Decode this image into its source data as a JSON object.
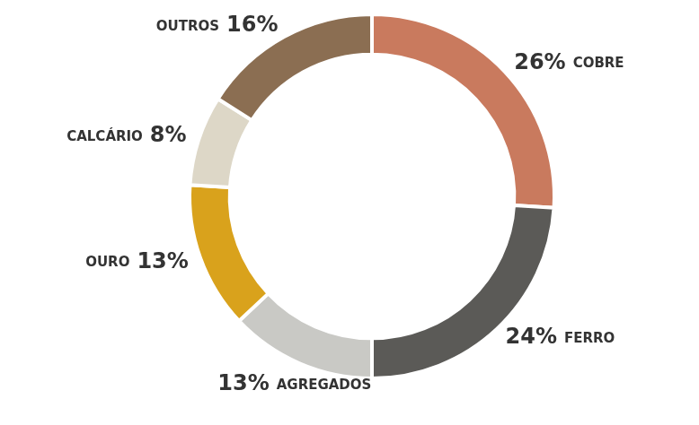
{
  "chart_data": {
    "type": "doughnut",
    "categories": [
      "COBRE",
      "FERRO",
      "AGREGADOS",
      "OURO",
      "CALCÁRIO",
      "OUTROS"
    ],
    "values": [
      26,
      24,
      13,
      13,
      8,
      16
    ],
    "value_labels": [
      "26%",
      "24%",
      "13%",
      "13%",
      "8%",
      "16%"
    ],
    "colors": [
      "#c97a5e",
      "#5b5a57",
      "#c9c9c5",
      "#d9a21c",
      "#ddd7c7",
      "#8b6e52"
    ],
    "data_labels": true
  }
}
